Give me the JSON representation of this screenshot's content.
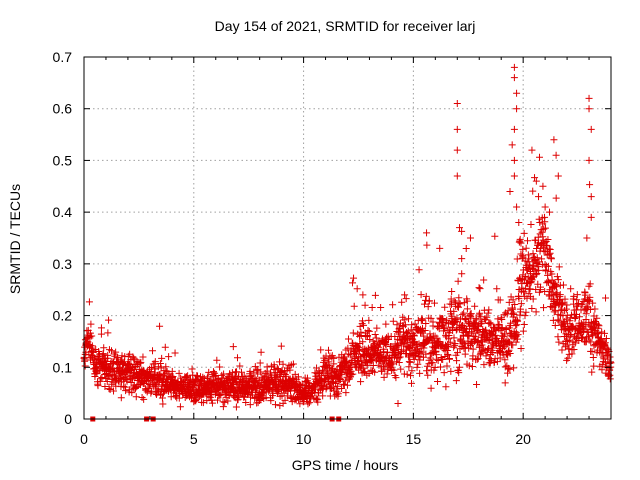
{
  "chart_data": {
    "type": "scatter",
    "title": "Day 154 of 2021, SRMTID for receiver larj",
    "xlabel": "GPS time / hours",
    "ylabel": "SRMTID / TECUs",
    "xlim": [
      0,
      24
    ],
    "ylim": [
      0,
      0.7
    ],
    "x_ticks": [
      0,
      5,
      10,
      15,
      20
    ],
    "x_tick_labels": [
      "0",
      "5",
      "10",
      "15",
      "20"
    ],
    "y_ticks": [
      0,
      0.1,
      0.2,
      0.3,
      0.4,
      0.5,
      0.6,
      0.7
    ],
    "y_tick_labels": [
      "0",
      "0.1",
      "0.2",
      "0.3",
      "0.4",
      "0.5",
      "0.6",
      "0.7"
    ],
    "grid": true,
    "marker": "+",
    "color": "#dd0000",
    "series_profile": {
      "x": [
        0.0,
        0.2,
        0.5,
        1.0,
        2.0,
        3.0,
        4.0,
        5.0,
        6.0,
        7.0,
        8.0,
        9.0,
        10.0,
        10.5,
        11.0,
        11.5,
        12.0,
        12.5,
        13.0,
        13.5,
        14.0,
        14.5,
        15.0,
        15.5,
        16.0,
        16.5,
        17.0,
        17.5,
        18.0,
        18.5,
        19.0,
        19.5,
        20.0,
        20.5,
        21.0,
        21.5,
        22.0,
        22.5,
        23.0,
        23.5,
        24.0
      ],
      "median": [
        0.12,
        0.16,
        0.1,
        0.1,
        0.09,
        0.08,
        0.065,
        0.06,
        0.06,
        0.06,
        0.065,
        0.07,
        0.05,
        0.06,
        0.09,
        0.08,
        0.1,
        0.13,
        0.14,
        0.13,
        0.13,
        0.14,
        0.14,
        0.15,
        0.15,
        0.15,
        0.17,
        0.17,
        0.16,
        0.15,
        0.15,
        0.18,
        0.27,
        0.3,
        0.33,
        0.22,
        0.17,
        0.18,
        0.2,
        0.14,
        0.1
      ],
      "spread": [
        0.04,
        0.04,
        0.04,
        0.04,
        0.03,
        0.03,
        0.025,
        0.025,
        0.025,
        0.03,
        0.03,
        0.03,
        0.02,
        0.025,
        0.04,
        0.03,
        0.04,
        0.05,
        0.05,
        0.04,
        0.04,
        0.05,
        0.05,
        0.06,
        0.06,
        0.06,
        0.07,
        0.06,
        0.05,
        0.05,
        0.05,
        0.08,
        0.09,
        0.08,
        0.08,
        0.07,
        0.05,
        0.05,
        0.06,
        0.04,
        0.03
      ]
    },
    "outliers": [
      {
        "x": 17.0,
        "y": 0.61
      },
      {
        "x": 17.0,
        "y": 0.56
      },
      {
        "x": 17.0,
        "y": 0.52
      },
      {
        "x": 17.0,
        "y": 0.47
      },
      {
        "x": 17.1,
        "y": 0.37
      },
      {
        "x": 17.6,
        "y": 0.35
      },
      {
        "x": 15.6,
        "y": 0.36
      },
      {
        "x": 16.2,
        "y": 0.33
      },
      {
        "x": 17.2,
        "y": 0.31
      },
      {
        "x": 19.6,
        "y": 0.68
      },
      {
        "x": 19.6,
        "y": 0.66
      },
      {
        "x": 19.7,
        "y": 0.63
      },
      {
        "x": 19.7,
        "y": 0.6
      },
      {
        "x": 19.6,
        "y": 0.56
      },
      {
        "x": 19.5,
        "y": 0.53
      },
      {
        "x": 19.6,
        "y": 0.5
      },
      {
        "x": 19.6,
        "y": 0.47
      },
      {
        "x": 19.4,
        "y": 0.44
      },
      {
        "x": 19.7,
        "y": 0.41
      },
      {
        "x": 19.8,
        "y": 0.38
      },
      {
        "x": 19.9,
        "y": 0.34
      },
      {
        "x": 20.4,
        "y": 0.52
      },
      {
        "x": 20.6,
        "y": 0.46
      },
      {
        "x": 20.7,
        "y": 0.43
      },
      {
        "x": 21.0,
        "y": 0.41
      },
      {
        "x": 20.9,
        "y": 0.45
      },
      {
        "x": 21.2,
        "y": 0.4
      },
      {
        "x": 21.4,
        "y": 0.54
      },
      {
        "x": 21.5,
        "y": 0.51
      },
      {
        "x": 21.6,
        "y": 0.47
      },
      {
        "x": 23.0,
        "y": 0.62
      },
      {
        "x": 23.0,
        "y": 0.6
      },
      {
        "x": 23.1,
        "y": 0.56
      },
      {
        "x": 23.0,
        "y": 0.5
      },
      {
        "x": 23.1,
        "y": 0.43
      },
      {
        "x": 23.1,
        "y": 0.39
      },
      {
        "x": 22.9,
        "y": 0.35
      },
      {
        "x": 12.7,
        "y": 0.24
      },
      {
        "x": 12.8,
        "y": 0.22
      },
      {
        "x": 6.8,
        "y": 0.14
      },
      {
        "x": 14.6,
        "y": 0.24
      },
      {
        "x": 14.3,
        "y": 0.03
      }
    ],
    "zero_points_x": [
      0.4,
      2.85,
      3.15,
      11.3,
      11.6
    ]
  }
}
